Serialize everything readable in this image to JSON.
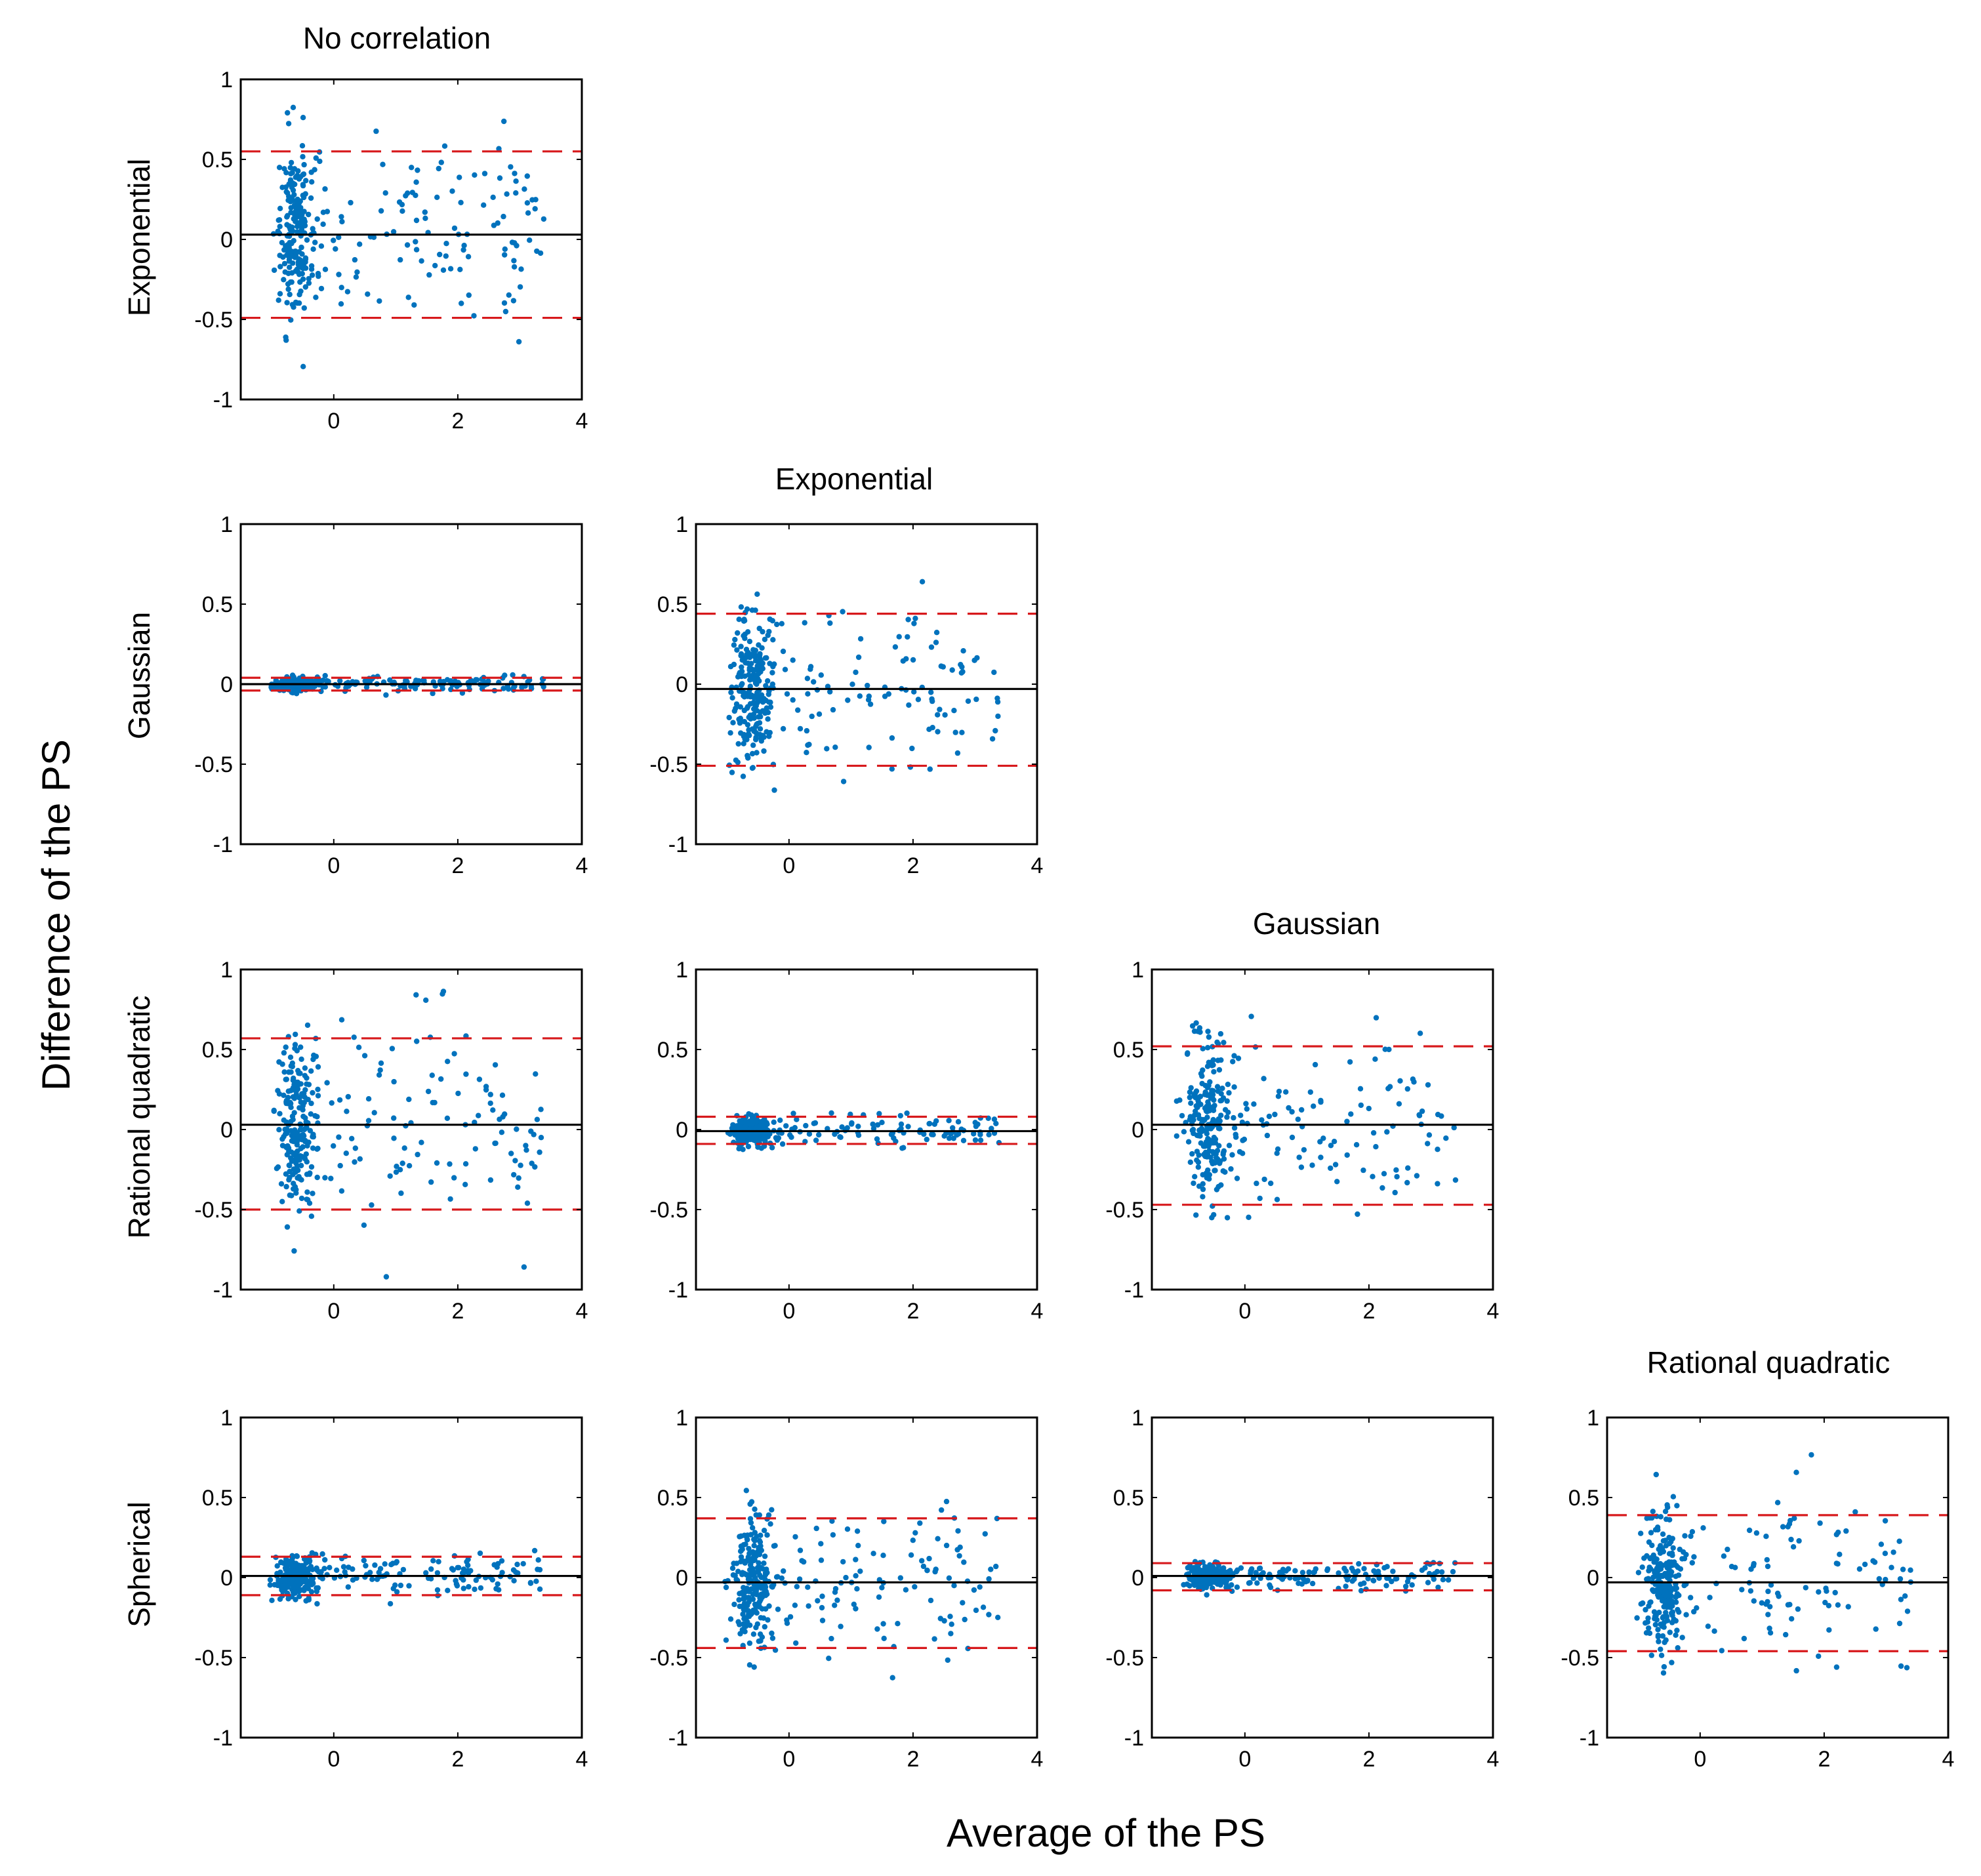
{
  "figure": {
    "ylabel": "Difference of the PS",
    "xlabel": "Average of the PS",
    "column_titles": [
      "No correlation",
      "Exponential",
      "Gaussian",
      "Rational quadratic"
    ],
    "row_labels": [
      "Exponential",
      "Gaussian",
      "Rational quadratic",
      "Spherical"
    ]
  },
  "colors": {
    "points": "#0072BD",
    "mean_line": "#000000",
    "limit_lines": "#D7191C",
    "axes": "#000000"
  },
  "chart_data": {
    "type": "scatter",
    "kind": "Bland-Altman matrix",
    "xlim": [
      -1.5,
      4
    ],
    "ylim": [
      -1,
      1
    ],
    "xticks": [
      0,
      2,
      4
    ],
    "yticks": [
      -1,
      -0.5,
      0,
      0.5,
      1
    ],
    "ytick_labels": [
      "-1",
      "-0.5",
      "0",
      "0.5",
      "1"
    ],
    "xtick_labels": [
      "0",
      "2",
      "4"
    ],
    "panels": [
      {
        "row": 0,
        "col": 0,
        "row_label": "Exponential",
        "col_title": "No correlation",
        "mean": 0.03,
        "upper": 0.55,
        "lower": -0.49,
        "spread": 0.26,
        "seed": 11
      },
      {
        "row": 1,
        "col": 0,
        "row_label": "Gaussian",
        "col_title": "No correlation",
        "mean": 0.0,
        "upper": 0.04,
        "lower": -0.04,
        "spread": 0.02,
        "seed": 23
      },
      {
        "row": 1,
        "col": 1,
        "row_label": "Gaussian",
        "col_title": "Exponential",
        "mean": -0.03,
        "upper": 0.44,
        "lower": -0.51,
        "spread": 0.24,
        "seed": 37
      },
      {
        "row": 2,
        "col": 0,
        "row_label": "Rational quadratic",
        "col_title": "No correlation",
        "mean": 0.03,
        "upper": 0.57,
        "lower": -0.5,
        "spread": 0.27,
        "seed": 41
      },
      {
        "row": 2,
        "col": 1,
        "row_label": "Rational quadratic",
        "col_title": "Exponential",
        "mean": -0.01,
        "upper": 0.08,
        "lower": -0.09,
        "spread": 0.045,
        "seed": 53
      },
      {
        "row": 2,
        "col": 2,
        "row_label": "Rational quadratic",
        "col_title": "Gaussian",
        "mean": 0.03,
        "upper": 0.52,
        "lower": -0.47,
        "spread": 0.25,
        "seed": 67
      },
      {
        "row": 3,
        "col": 0,
        "row_label": "Spherical",
        "col_title": "No correlation",
        "mean": 0.01,
        "upper": 0.13,
        "lower": -0.11,
        "spread": 0.06,
        "seed": 71
      },
      {
        "row": 3,
        "col": 1,
        "row_label": "Spherical",
        "col_title": "Exponential",
        "mean": -0.03,
        "upper": 0.37,
        "lower": -0.44,
        "spread": 0.2,
        "seed": 83
      },
      {
        "row": 3,
        "col": 2,
        "row_label": "Spherical",
        "col_title": "Gaussian",
        "mean": 0.01,
        "upper": 0.09,
        "lower": -0.08,
        "spread": 0.04,
        "seed": 97
      },
      {
        "row": 3,
        "col": 3,
        "row_label": "Spherical",
        "col_title": "Rational quadratic",
        "mean": -0.03,
        "upper": 0.39,
        "lower": -0.46,
        "spread": 0.21,
        "seed": 101
      }
    ]
  }
}
